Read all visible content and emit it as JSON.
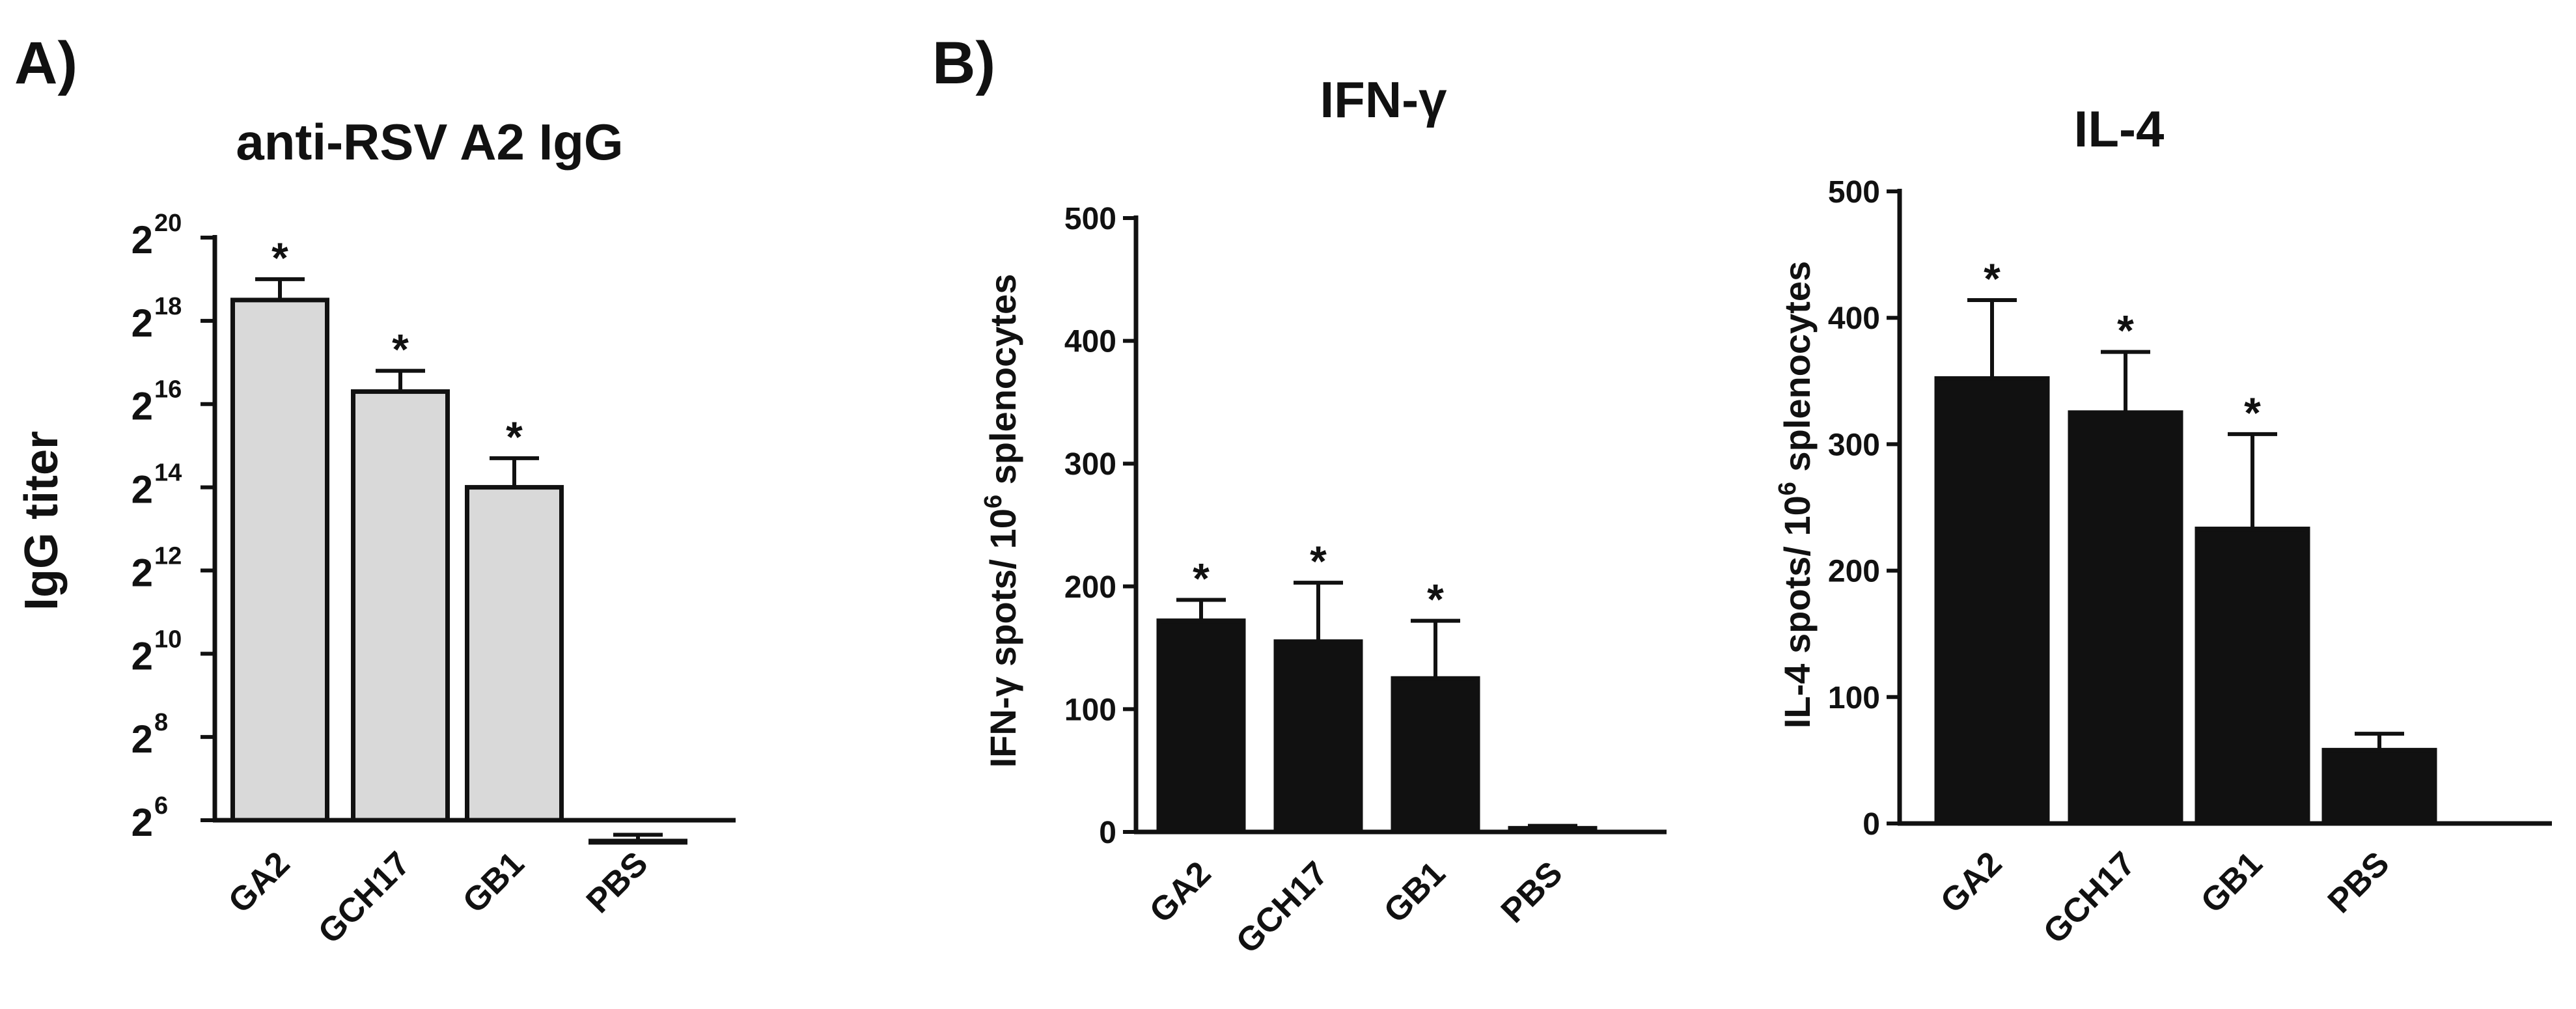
{
  "panels": {
    "a": {
      "letter": "A)"
    },
    "b": {
      "letter": "B)"
    }
  },
  "chart_data": [
    {
      "type": "bar",
      "title": "anti-RSV A2 IgG",
      "ylabel": "IgG titer",
      "xlabel": "",
      "y_scale": "log2",
      "y_tick_base": "2",
      "y_tick_exponents": [
        "6",
        "8",
        "10",
        "12",
        "14",
        "16",
        "18",
        "20"
      ],
      "ylim": [
        64,
        1048576
      ],
      "categories": [
        "GA2",
        "GCH17",
        "GB1",
        "PBS"
      ],
      "values_log2": [
        18.5,
        16.3,
        14.0,
        5.5
      ],
      "error_log2": [
        0.5,
        0.5,
        0.7,
        0.15
      ],
      "significance": [
        "*",
        "*",
        "*",
        ""
      ],
      "bar_color": "#d9d9d9",
      "grid": false
    },
    {
      "type": "bar",
      "title": "IFN-γ",
      "ylabel": "IFN-γ spots/ 10",
      "ylabel_sup": "6",
      "ylabel_tail": " splenocytes",
      "xlabel": "",
      "yticks": [
        "0",
        "100",
        "200",
        "300",
        "400",
        "500"
      ],
      "ylim": [
        0,
        500
      ],
      "categories": [
        "GA2",
        "GCH17",
        "GB1",
        "PBS"
      ],
      "values": [
        172,
        155,
        125,
        3
      ],
      "error": [
        17,
        48,
        47,
        2
      ],
      "significance": [
        "*",
        "*",
        "*",
        ""
      ],
      "bar_color": "#111111",
      "grid": false
    },
    {
      "type": "bar",
      "title": "IL-4",
      "ylabel": "IL-4 spots/ 10",
      "ylabel_sup": "6",
      "ylabel_tail": " splenocytes",
      "xlabel": "",
      "yticks": [
        "0",
        "100",
        "200",
        "300",
        "400",
        "500"
      ],
      "ylim": [
        0,
        500
      ],
      "categories": [
        "GA2",
        "GCH17",
        "GB1",
        "PBS"
      ],
      "values": [
        352,
        325,
        233,
        58
      ],
      "error": [
        62,
        48,
        75,
        13
      ],
      "significance": [
        "*",
        "*",
        "*",
        ""
      ],
      "bar_color": "#111111",
      "grid": false
    }
  ]
}
